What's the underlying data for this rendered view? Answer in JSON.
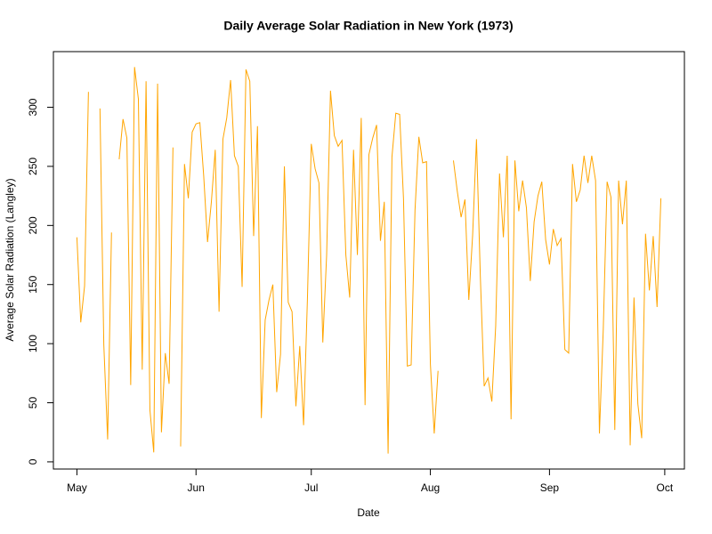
{
  "chart_data": {
    "type": "line",
    "title": "Daily Average Solar Radiation in New York (1973)",
    "x_label": "Date",
    "y_label": "Average Solar Radiation (Langley)",
    "color": "#ffa500",
    "xlim": [
      -6.12,
      158.12
    ],
    "xticks": [
      {
        "value": 0,
        "label": "May"
      },
      {
        "value": 31,
        "label": "Jun"
      },
      {
        "value": 61,
        "label": "Jul"
      },
      {
        "value": 92,
        "label": "Aug"
      },
      {
        "value": 123,
        "label": "Sep"
      },
      {
        "value": 153,
        "label": "Oct"
      }
    ],
    "ylim": [
      -6.08,
      347.08
    ],
    "yticks": [
      0,
      50,
      100,
      150,
      200,
      250,
      300
    ],
    "values": [
      190,
      118,
      149,
      313,
      null,
      null,
      299,
      99,
      19,
      194,
      null,
      256,
      290,
      274,
      65,
      334,
      307,
      78,
      322,
      44,
      8,
      320,
      25,
      92,
      66,
      266,
      null,
      13,
      252,
      223,
      279,
      286,
      287,
      242,
      186,
      220,
      264,
      127,
      273,
      291,
      323,
      259,
      250,
      148,
      332,
      322,
      191,
      284,
      37,
      120,
      137,
      150,
      59,
      91,
      250,
      135,
      127,
      47,
      98,
      31,
      138,
      269,
      248,
      236,
      101,
      175,
      314,
      276,
      267,
      272,
      175,
      139,
      264,
      175,
      291,
      48,
      260,
      274,
      285,
      187,
      220,
      7,
      258,
      295,
      294,
      223,
      81,
      82,
      213,
      275,
      253,
      254,
      83,
      24,
      77,
      null,
      null,
      null,
      255,
      229,
      207,
      222,
      137,
      192,
      273,
      157,
      64,
      71,
      51,
      115,
      244,
      190,
      259,
      36,
      255,
      212,
      238,
      215,
      153,
      203,
      225,
      237,
      188,
      167,
      197,
      183,
      189,
      95,
      92,
      252,
      220,
      230,
      259,
      236,
      259,
      238,
      24,
      112,
      237,
      224,
      27,
      238,
      201,
      238,
      14,
      139,
      49,
      20,
      193,
      145,
      191,
      131,
      223
    ]
  }
}
